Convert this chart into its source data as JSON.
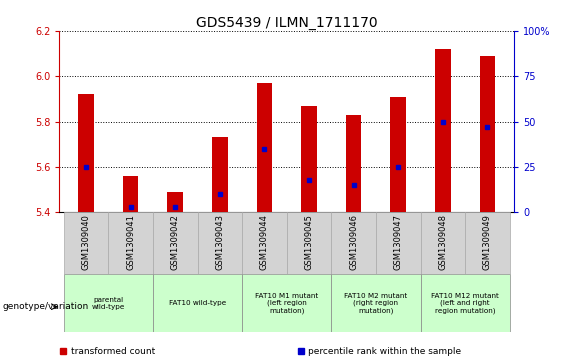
{
  "title": "GDS5439 / ILMN_1711170",
  "samples": [
    "GSM1309040",
    "GSM1309041",
    "GSM1309042",
    "GSM1309043",
    "GSM1309044",
    "GSM1309045",
    "GSM1309046",
    "GSM1309047",
    "GSM1309048",
    "GSM1309049"
  ],
  "bar_values": [
    5.92,
    5.56,
    5.49,
    5.73,
    5.97,
    5.87,
    5.83,
    5.91,
    6.12,
    6.09
  ],
  "percentile_values": [
    25,
    3,
    3,
    10,
    35,
    18,
    15,
    25,
    50,
    47
  ],
  "ylim_left": [
    5.4,
    6.2
  ],
  "ylim_right": [
    0,
    100
  ],
  "yticks_left": [
    5.4,
    5.6,
    5.8,
    6.0,
    6.2
  ],
  "yticks_right": [
    0,
    25,
    50,
    75,
    100
  ],
  "bar_color": "#cc0000",
  "percentile_color": "#0000cc",
  "bar_width": 0.35,
  "group_boundaries": [
    {
      "start": 0,
      "end": 1,
      "label": "parental\nwild-type",
      "color": "#ccffcc"
    },
    {
      "start": 2,
      "end": 3,
      "label": "FAT10 wild-type",
      "color": "#ccffcc"
    },
    {
      "start": 4,
      "end": 5,
      "label": "FAT10 M1 mutant\n(left region\nmutation)",
      "color": "#ccffcc"
    },
    {
      "start": 6,
      "end": 7,
      "label": "FAT10 M2 mutant\n(right region\nmutation)",
      "color": "#ccffcc"
    },
    {
      "start": 8,
      "end": 9,
      "label": "FAT10 M12 mutant\n(left and right\nregion mutation)",
      "color": "#ccffcc"
    }
  ],
  "legend_items": [
    {
      "label": "transformed count",
      "color": "#cc0000"
    },
    {
      "label": "percentile rank within the sample",
      "color": "#0000cc"
    }
  ],
  "title_fontsize": 10,
  "tick_fontsize": 7,
  "axis_tick_color_left": "#cc0000",
  "axis_tick_color_right": "#0000cc",
  "genotype_label": "genotype/variation",
  "sample_bg_color": "#d3d3d3"
}
